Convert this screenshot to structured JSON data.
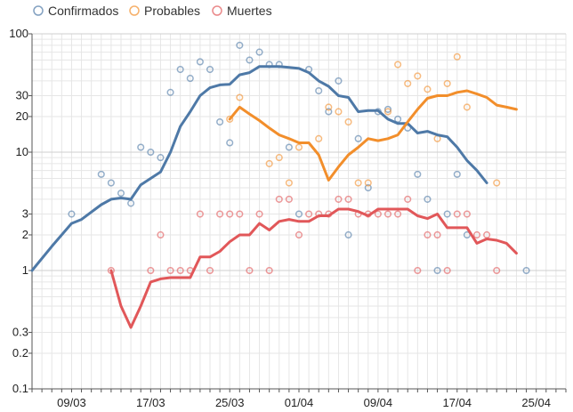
{
  "chart_data": {
    "type": "line",
    "yscale": "log",
    "ylim": [
      0.1,
      100
    ],
    "y_ticks": [
      {
        "v": 0.1,
        "label": "0.1"
      },
      {
        "v": 0.2,
        "label": "0.2"
      },
      {
        "v": 0.3,
        "label": "0.3"
      },
      {
        "v": 1,
        "label": "1"
      },
      {
        "v": 2,
        "label": "2"
      },
      {
        "v": 3,
        "label": "3"
      },
      {
        "v": 10,
        "label": "10"
      },
      {
        "v": 20,
        "label": "20"
      },
      {
        "v": 30,
        "label": "30"
      },
      {
        "v": 100,
        "label": "100"
      }
    ],
    "x_start": "2020-03-05",
    "x_end": "2020-04-28",
    "x_ticks": [
      {
        "date": "2020-03-09",
        "label": "09/03"
      },
      {
        "date": "2020-03-17",
        "label": "17/03"
      },
      {
        "date": "2020-03-25",
        "label": "25/03"
      },
      {
        "date": "2020-04-01",
        "label": "01/04"
      },
      {
        "date": "2020-04-09",
        "label": "09/04"
      },
      {
        "date": "2020-04-17",
        "label": "17/04"
      },
      {
        "date": "2020-04-25",
        "label": "25/04"
      }
    ],
    "grid": true,
    "legend_position": "top-left",
    "series": [
      {
        "name": "Confirmados",
        "color": "#4e79a7",
        "points": [
          {
            "x": "2020-03-09",
            "y": 3
          },
          {
            "x": "2020-03-12",
            "y": 6.5
          },
          {
            "x": "2020-03-13",
            "y": 5.5
          },
          {
            "x": "2020-03-14",
            "y": 4.5
          },
          {
            "x": "2020-03-15",
            "y": 3.7
          },
          {
            "x": "2020-03-16",
            "y": 11
          },
          {
            "x": "2020-03-17",
            "y": 10
          },
          {
            "x": "2020-03-18",
            "y": 9
          },
          {
            "x": "2020-03-19",
            "y": 32
          },
          {
            "x": "2020-03-20",
            "y": 50
          },
          {
            "x": "2020-03-21",
            "y": 42
          },
          {
            "x": "2020-03-22",
            "y": 58
          },
          {
            "x": "2020-03-23",
            "y": 50
          },
          {
            "x": "2020-03-24",
            "y": 18
          },
          {
            "x": "2020-03-25",
            "y": 12
          },
          {
            "x": "2020-03-26",
            "y": 80
          },
          {
            "x": "2020-03-27",
            "y": 60
          },
          {
            "x": "2020-03-28",
            "y": 70
          },
          {
            "x": "2020-03-29",
            "y": 55
          },
          {
            "x": "2020-03-30",
            "y": 55
          },
          {
            "x": "2020-03-31",
            "y": 11
          },
          {
            "x": "2020-04-01",
            "y": 3
          },
          {
            "x": "2020-04-02",
            "y": 50
          },
          {
            "x": "2020-04-03",
            "y": 33
          },
          {
            "x": "2020-04-04",
            "y": 22
          },
          {
            "x": "2020-04-05",
            "y": 40
          },
          {
            "x": "2020-04-06",
            "y": 2
          },
          {
            "x": "2020-04-07",
            "y": 13
          },
          {
            "x": "2020-04-08",
            "y": 5
          },
          {
            "x": "2020-04-09",
            "y": 22
          },
          {
            "x": "2020-04-10",
            "y": 23
          },
          {
            "x": "2020-04-11",
            "y": 19
          },
          {
            "x": "2020-04-12",
            "y": 16
          },
          {
            "x": "2020-04-13",
            "y": 6.5
          },
          {
            "x": "2020-04-14",
            "y": 4
          },
          {
            "x": "2020-04-15",
            "y": 1
          },
          {
            "x": "2020-04-16",
            "y": 3
          },
          {
            "x": "2020-04-17",
            "y": 6.5
          },
          {
            "x": "2020-04-18",
            "y": 2
          },
          {
            "x": "2020-04-24",
            "y": 1
          }
        ],
        "trend": [
          {
            "x": "2020-03-05",
            "y": 1
          },
          {
            "x": "2020-03-07",
            "y": 1.6
          },
          {
            "x": "2020-03-09",
            "y": 2.5
          },
          {
            "x": "2020-03-10",
            "y": 2.7
          },
          {
            "x": "2020-03-12",
            "y": 3.6
          },
          {
            "x": "2020-03-13",
            "y": 4
          },
          {
            "x": "2020-03-14",
            "y": 4.1
          },
          {
            "x": "2020-03-15",
            "y": 4
          },
          {
            "x": "2020-03-16",
            "y": 5.3
          },
          {
            "x": "2020-03-17",
            "y": 6
          },
          {
            "x": "2020-03-18",
            "y": 6.8
          },
          {
            "x": "2020-03-19",
            "y": 10
          },
          {
            "x": "2020-03-20",
            "y": 16.5
          },
          {
            "x": "2020-03-21",
            "y": 22
          },
          {
            "x": "2020-03-22",
            "y": 30
          },
          {
            "x": "2020-03-23",
            "y": 35
          },
          {
            "x": "2020-03-24",
            "y": 37
          },
          {
            "x": "2020-03-25",
            "y": 37.5
          },
          {
            "x": "2020-03-26",
            "y": 45
          },
          {
            "x": "2020-03-27",
            "y": 47
          },
          {
            "x": "2020-03-28",
            "y": 53
          },
          {
            "x": "2020-03-29",
            "y": 53
          },
          {
            "x": "2020-03-30",
            "y": 53
          },
          {
            "x": "2020-03-31",
            "y": 52
          },
          {
            "x": "2020-04-01",
            "y": 51
          },
          {
            "x": "2020-04-02",
            "y": 47
          },
          {
            "x": "2020-04-03",
            "y": 40
          },
          {
            "x": "2020-04-04",
            "y": 36
          },
          {
            "x": "2020-04-05",
            "y": 30
          },
          {
            "x": "2020-04-06",
            "y": 29
          },
          {
            "x": "2020-04-07",
            "y": 22
          },
          {
            "x": "2020-04-08",
            "y": 22.5
          },
          {
            "x": "2020-04-09",
            "y": 22.5
          },
          {
            "x": "2020-04-10",
            "y": 19
          },
          {
            "x": "2020-04-11",
            "y": 17.5
          },
          {
            "x": "2020-04-12",
            "y": 17.5
          },
          {
            "x": "2020-04-13",
            "y": 14.5
          },
          {
            "x": "2020-04-14",
            "y": 15
          },
          {
            "x": "2020-04-15",
            "y": 14
          },
          {
            "x": "2020-04-16",
            "y": 13.5
          },
          {
            "x": "2020-04-17",
            "y": 11
          },
          {
            "x": "2020-04-18",
            "y": 8.5
          },
          {
            "x": "2020-04-19",
            "y": 7
          },
          {
            "x": "2020-04-20",
            "y": 5.5
          }
        ]
      },
      {
        "name": "Probables",
        "color": "#f28e2b",
        "points": [
          {
            "x": "2020-03-25",
            "y": 19
          },
          {
            "x": "2020-03-26",
            "y": 29
          },
          {
            "x": "2020-03-29",
            "y": 8
          },
          {
            "x": "2020-03-30",
            "y": 9
          },
          {
            "x": "2020-03-31",
            "y": 5.5
          },
          {
            "x": "2020-04-01",
            "y": 11
          },
          {
            "x": "2020-04-03",
            "y": 13
          },
          {
            "x": "2020-04-04",
            "y": 24
          },
          {
            "x": "2020-04-05",
            "y": 22
          },
          {
            "x": "2020-04-06",
            "y": 18
          },
          {
            "x": "2020-04-07",
            "y": 5.5
          },
          {
            "x": "2020-04-08",
            "y": 5.5
          },
          {
            "x": "2020-04-10",
            "y": 22
          },
          {
            "x": "2020-04-11",
            "y": 55
          },
          {
            "x": "2020-04-12",
            "y": 38
          },
          {
            "x": "2020-04-13",
            "y": 44
          },
          {
            "x": "2020-04-14",
            "y": 34
          },
          {
            "x": "2020-04-15",
            "y": 13
          },
          {
            "x": "2020-04-16",
            "y": 38
          },
          {
            "x": "2020-04-17",
            "y": 64
          },
          {
            "x": "2020-04-18",
            "y": 24
          },
          {
            "x": "2020-04-21",
            "y": 5.5
          }
        ],
        "trend": [
          {
            "x": "2020-03-25",
            "y": 19
          },
          {
            "x": "2020-03-26",
            "y": 24
          },
          {
            "x": "2020-03-27",
            "y": 21
          },
          {
            "x": "2020-03-28",
            "y": 18.5
          },
          {
            "x": "2020-03-29",
            "y": 16
          },
          {
            "x": "2020-03-30",
            "y": 14
          },
          {
            "x": "2020-03-31",
            "y": 13
          },
          {
            "x": "2020-04-01",
            "y": 12
          },
          {
            "x": "2020-04-02",
            "y": 12
          },
          {
            "x": "2020-04-03",
            "y": 9.5
          },
          {
            "x": "2020-04-04",
            "y": 5.8
          },
          {
            "x": "2020-04-05",
            "y": 7.5
          },
          {
            "x": "2020-04-06",
            "y": 9.5
          },
          {
            "x": "2020-04-07",
            "y": 11
          },
          {
            "x": "2020-04-08",
            "y": 13
          },
          {
            "x": "2020-04-09",
            "y": 12.5
          },
          {
            "x": "2020-04-10",
            "y": 13
          },
          {
            "x": "2020-04-11",
            "y": 14
          },
          {
            "x": "2020-04-12",
            "y": 18
          },
          {
            "x": "2020-04-13",
            "y": 23
          },
          {
            "x": "2020-04-14",
            "y": 28.5
          },
          {
            "x": "2020-04-15",
            "y": 30
          },
          {
            "x": "2020-04-16",
            "y": 30
          },
          {
            "x": "2020-04-17",
            "y": 32
          },
          {
            "x": "2020-04-18",
            "y": 33
          },
          {
            "x": "2020-04-19",
            "y": 31
          },
          {
            "x": "2020-04-20",
            "y": 29
          },
          {
            "x": "2020-04-21",
            "y": 25
          },
          {
            "x": "2020-04-22",
            "y": 24
          },
          {
            "x": "2020-04-23",
            "y": 23
          }
        ]
      },
      {
        "name": "Muertes",
        "color": "#e15759",
        "points": [
          {
            "x": "2020-03-13",
            "y": 1
          },
          {
            "x": "2020-03-17",
            "y": 1
          },
          {
            "x": "2020-03-18",
            "y": 2
          },
          {
            "x": "2020-03-19",
            "y": 1
          },
          {
            "x": "2020-03-20",
            "y": 1
          },
          {
            "x": "2020-03-21",
            "y": 1
          },
          {
            "x": "2020-03-22",
            "y": 3
          },
          {
            "x": "2020-03-23",
            "y": 1
          },
          {
            "x": "2020-03-24",
            "y": 3
          },
          {
            "x": "2020-03-25",
            "y": 3
          },
          {
            "x": "2020-03-26",
            "y": 3
          },
          {
            "x": "2020-03-27",
            "y": 1
          },
          {
            "x": "2020-03-28",
            "y": 3
          },
          {
            "x": "2020-03-29",
            "y": 1
          },
          {
            "x": "2020-03-30",
            "y": 4
          },
          {
            "x": "2020-03-31",
            "y": 4
          },
          {
            "x": "2020-04-01",
            "y": 2
          },
          {
            "x": "2020-04-02",
            "y": 3
          },
          {
            "x": "2020-04-03",
            "y": 3
          },
          {
            "x": "2020-04-04",
            "y": 3
          },
          {
            "x": "2020-04-05",
            "y": 4
          },
          {
            "x": "2020-04-06",
            "y": 4
          },
          {
            "x": "2020-04-07",
            "y": 3
          },
          {
            "x": "2020-04-08",
            "y": 3
          },
          {
            "x": "2020-04-09",
            "y": 3
          },
          {
            "x": "2020-04-10",
            "y": 3
          },
          {
            "x": "2020-04-11",
            "y": 3
          },
          {
            "x": "2020-04-12",
            "y": 4
          },
          {
            "x": "2020-04-13",
            "y": 1
          },
          {
            "x": "2020-04-14",
            "y": 2
          },
          {
            "x": "2020-04-15",
            "y": 2
          },
          {
            "x": "2020-04-16",
            "y": 1
          },
          {
            "x": "2020-04-17",
            "y": 3
          },
          {
            "x": "2020-04-18",
            "y": 3
          },
          {
            "x": "2020-04-19",
            "y": 2
          },
          {
            "x": "2020-04-20",
            "y": 2
          },
          {
            "x": "2020-04-21",
            "y": 1
          }
        ],
        "trend": [
          {
            "x": "2020-03-13",
            "y": 1
          },
          {
            "x": "2020-03-14",
            "y": 0.5
          },
          {
            "x": "2020-03-15",
            "y": 0.33
          },
          {
            "x": "2020-03-16",
            "y": 0.5
          },
          {
            "x": "2020-03-17",
            "y": 0.8
          },
          {
            "x": "2020-03-18",
            "y": 0.85
          },
          {
            "x": "2020-03-19",
            "y": 0.87
          },
          {
            "x": "2020-03-20",
            "y": 0.87
          },
          {
            "x": "2020-03-21",
            "y": 0.87
          },
          {
            "x": "2020-03-22",
            "y": 1.3
          },
          {
            "x": "2020-03-23",
            "y": 1.3
          },
          {
            "x": "2020-03-24",
            "y": 1.45
          },
          {
            "x": "2020-03-25",
            "y": 1.75
          },
          {
            "x": "2020-03-26",
            "y": 2
          },
          {
            "x": "2020-03-27",
            "y": 2
          },
          {
            "x": "2020-03-28",
            "y": 2.5
          },
          {
            "x": "2020-03-29",
            "y": 2.2
          },
          {
            "x": "2020-03-30",
            "y": 2.6
          },
          {
            "x": "2020-03-31",
            "y": 2.7
          },
          {
            "x": "2020-04-01",
            "y": 2.6
          },
          {
            "x": "2020-04-02",
            "y": 2.6
          },
          {
            "x": "2020-04-03",
            "y": 2.9
          },
          {
            "x": "2020-04-04",
            "y": 2.9
          },
          {
            "x": "2020-04-05",
            "y": 3.3
          },
          {
            "x": "2020-04-06",
            "y": 3.3
          },
          {
            "x": "2020-04-07",
            "y": 3.15
          },
          {
            "x": "2020-04-08",
            "y": 2.9
          },
          {
            "x": "2020-04-09",
            "y": 3.3
          },
          {
            "x": "2020-04-10",
            "y": 3.3
          },
          {
            "x": "2020-04-11",
            "y": 3.3
          },
          {
            "x": "2020-04-12",
            "y": 3.3
          },
          {
            "x": "2020-04-13",
            "y": 2.9
          },
          {
            "x": "2020-04-14",
            "y": 2.75
          },
          {
            "x": "2020-04-15",
            "y": 3
          },
          {
            "x": "2020-04-16",
            "y": 2.3
          },
          {
            "x": "2020-04-17",
            "y": 2.3
          },
          {
            "x": "2020-04-18",
            "y": 2.3
          },
          {
            "x": "2020-04-19",
            "y": 1.7
          },
          {
            "x": "2020-04-20",
            "y": 1.85
          },
          {
            "x": "2020-04-21",
            "y": 1.8
          },
          {
            "x": "2020-04-22",
            "y": 1.7
          },
          {
            "x": "2020-04-23",
            "y": 1.4
          }
        ]
      }
    ]
  }
}
